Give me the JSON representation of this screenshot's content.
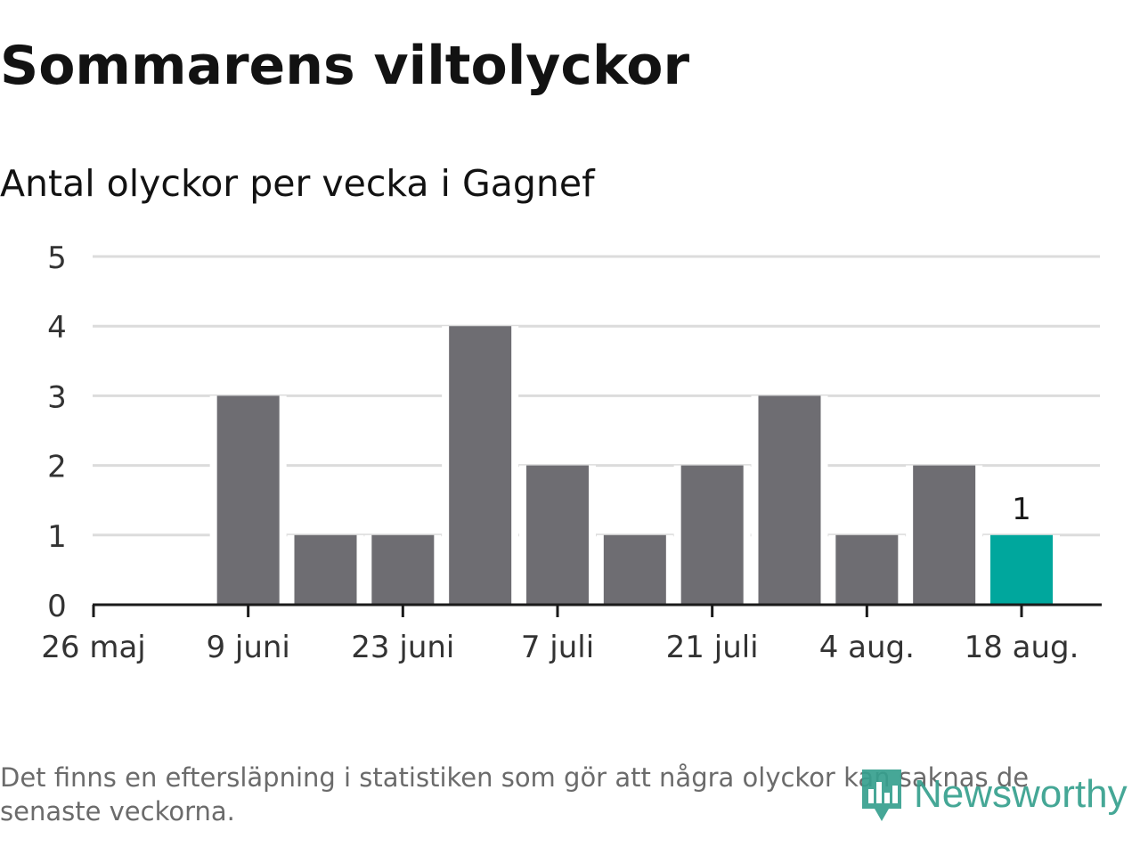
{
  "title": "Sommarens viltolyckor",
  "subtitle": "Antal olyckor per vecka i Gagnef",
  "footnote": "Det finns en eftersläpning i statistiken som gör att några olyckor kan saknas de senaste veckorna.",
  "logo": {
    "name": "Newsworthy",
    "icon": "bar-chart-pin-icon",
    "color": "#36a08e"
  },
  "colors": {
    "bar": "#6e6d72",
    "highlight": "#00a79d",
    "grid": "#dcdcdc",
    "axis": "#1a1a1a",
    "tick_text": "#333333"
  },
  "chart_data": {
    "type": "bar",
    "title": "Sommarens viltolyckor",
    "subtitle": "Antal olyckor per vecka i Gagnef",
    "x": [
      "2019-05-26",
      "2019-06-02",
      "2019-06-09",
      "2019-06-16",
      "2019-06-23",
      "2019-06-30",
      "2019-07-07",
      "2019-07-14",
      "2019-07-21",
      "2019-07-28",
      "2019-08-04",
      "2019-08-11",
      "2019-08-18"
    ],
    "values": [
      null,
      null,
      3,
      1,
      1,
      4,
      2,
      1,
      2,
      3,
      1,
      2,
      1
    ],
    "highlight_last": true,
    "data_labels": [
      {
        "x": "2019-08-18",
        "text": "1"
      }
    ],
    "x_ticks": [
      {
        "x": "2019-05-26",
        "label": "26 maj"
      },
      {
        "x": "2019-06-09",
        "label": "9 juni"
      },
      {
        "x": "2019-06-23",
        "label": "23 juni"
      },
      {
        "x": "2019-07-07",
        "label": "7 juli"
      },
      {
        "x": "2019-07-21",
        "label": "21 juli"
      },
      {
        "x": "2019-08-04",
        "label": "4 aug."
      },
      {
        "x": "2019-08-18",
        "label": "18 aug."
      }
    ],
    "y_ticks": [
      "0",
      "1",
      "2",
      "3",
      "4",
      "5"
    ],
    "ylim": [
      0,
      5
    ],
    "grid": true,
    "xlabel": "",
    "ylabel": "",
    "legend": "none"
  }
}
